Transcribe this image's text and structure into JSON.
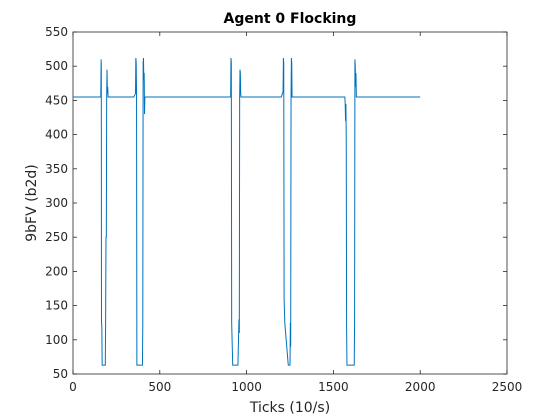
{
  "chart_data": {
    "type": "line",
    "title": "Agent 0 Flocking",
    "xlabel": "Ticks (10/s)",
    "ylabel": "9bFV (b2d)",
    "xlim": [
      0,
      2500
    ],
    "ylim": [
      50,
      550
    ],
    "xticks": [
      "0",
      "500",
      "1000",
      "1500",
      "2000",
      "2500"
    ],
    "yticks": [
      "50",
      "100",
      "150",
      "200",
      "250",
      "300",
      "350",
      "400",
      "450",
      "500",
      "550"
    ],
    "grid": false,
    "colors": {
      "series": "#0072bd",
      "axes": "#262626",
      "background": "#ffffff"
    },
    "series": [
      {
        "x": [
          0,
          160,
          162,
          163,
          164,
          166,
          168,
          180,
          186,
          188,
          190,
          192,
          194,
          196,
          198,
          200,
          202,
          204,
          206,
          208,
          210,
          350,
          360,
          362,
          364,
          366,
          368,
          380,
          400,
          402,
          404,
          406,
          408,
          410,
          412,
          414,
          416,
          418,
          420,
          425,
          900,
          908,
          910,
          912,
          914,
          920,
          930,
          950,
          956,
          958,
          960,
          962,
          964,
          966,
          968,
          970,
          975,
          1200,
          1210,
          1212,
          1214,
          1216,
          1220,
          1240,
          1250,
          1252,
          1254,
          1256,
          1258,
          1260,
          1262,
          1265,
          1560,
          1566,
          1568,
          1570,
          1572,
          1574,
          1576,
          1578,
          1580,
          1620,
          1622,
          1624,
          1626,
          1628,
          1630,
          1632,
          1635,
          1640,
          2000
        ],
        "y": [
          455,
          455,
          510,
          500,
          127,
          120,
          63,
          63,
          63,
          130,
          250,
          250,
          455,
          495,
          460,
          470,
          455,
          455,
          455,
          455,
          455,
          455,
          460,
          512,
          505,
          460,
          63,
          63,
          63,
          125,
          505,
          512,
          480,
          490,
          430,
          455,
          455,
          455,
          455,
          455,
          455,
          455,
          512,
          505,
          125,
          63,
          63,
          63,
          130,
          110,
          455,
          495,
          490,
          460,
          455,
          455,
          455,
          455,
          463,
          512,
          505,
          160,
          125,
          63,
          63,
          125,
          90,
          455,
          512,
          505,
          455,
          455,
          455,
          455,
          445,
          420,
          445,
          390,
          120,
          63,
          63,
          63,
          125,
          510,
          500,
          470,
          490,
          455,
          455,
          455,
          455
        ]
      }
    ]
  }
}
